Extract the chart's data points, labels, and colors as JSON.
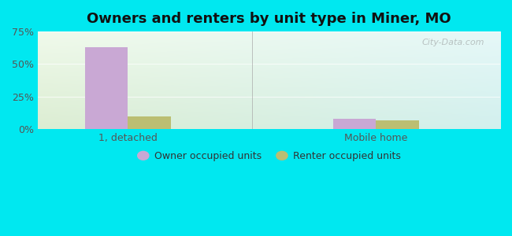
{
  "title": "Owners and renters by unit type in Miner, MO",
  "categories": [
    "1, detached",
    "Mobile home"
  ],
  "owner_values": [
    63,
    8
  ],
  "renter_values": [
    10,
    7
  ],
  "owner_color": "#c9a8d4",
  "renter_color": "#bbbe72",
  "ylim": [
    0,
    75
  ],
  "yticks": [
    0,
    25,
    50,
    75
  ],
  "yticklabels": [
    "0%",
    "25%",
    "50%",
    "75%"
  ],
  "background_outer": "#00e8f0",
  "legend_owner": "Owner occupied units",
  "legend_renter": "Renter occupied units",
  "watermark": "City-Data.com",
  "title_fontsize": 13,
  "label_fontsize": 9,
  "tick_fontsize": 9,
  "group_positions": [
    1.0,
    3.2
  ],
  "bar_width": 0.38,
  "xlim": [
    0.2,
    4.3
  ]
}
